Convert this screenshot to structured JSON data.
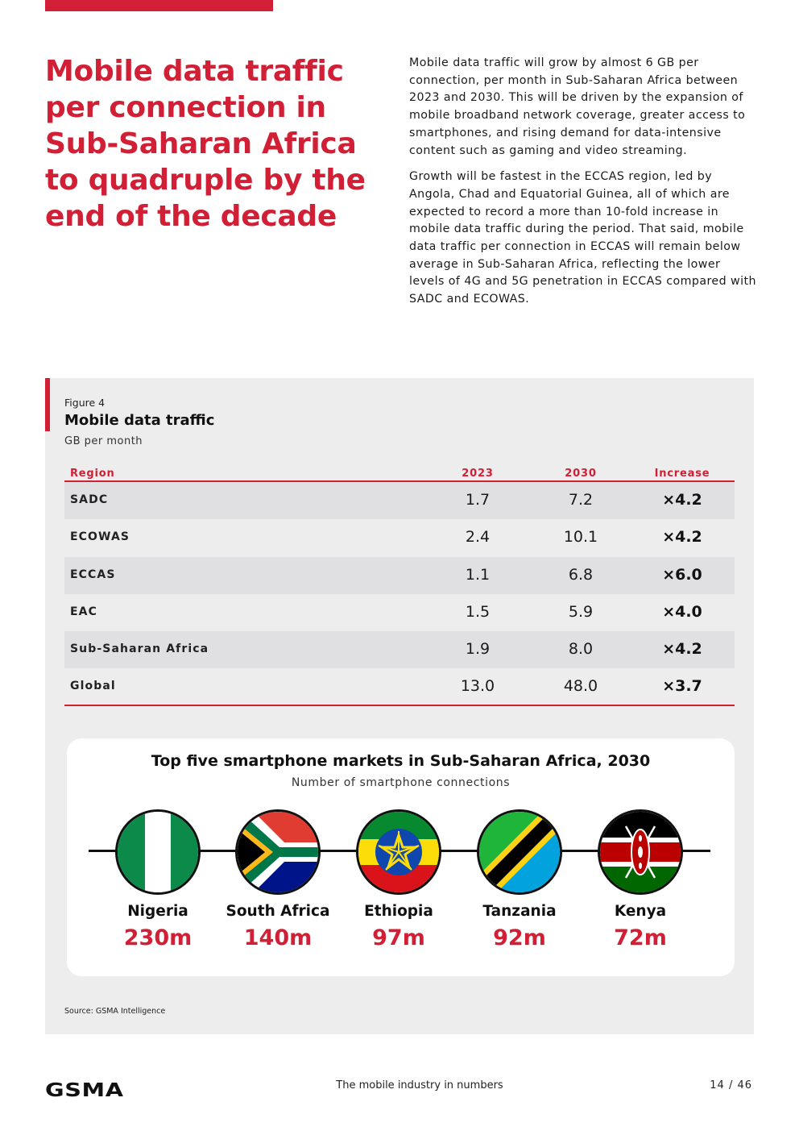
{
  "headline": "Mobile data traffic per connection in Sub-Saharan Africa to quadruple by the end of the decade",
  "intro": {
    "paragraph1": "Mobile data traffic will grow by almost 6 GB per connection, per month in Sub-Saharan Africa between 2023 and 2030. This will be driven by the expansion of mobile broadband network coverage, greater access to smartphones, and rising demand for data-intensive content such as gaming and video streaming.",
    "paragraph2": "Growth will be fastest in the ECCAS region, led by Angola, Chad and Equatorial Guinea, all of which are expected to record a more than 10-fold increase in mobile data traffic during the period. That said, mobile data traffic per connection in ECCAS will remain below average in Sub-Saharan Africa, reflecting the lower levels of 4G and 5G penetration in ECCAS compared with SADC and ECOWAS."
  },
  "figure": {
    "label": "Figure 4",
    "title": "Mobile data traffic",
    "subtitle": "GB per month",
    "columns": [
      "Region",
      "2023",
      "2030",
      "Increase"
    ],
    "rows": [
      {
        "region": "SADC",
        "y2023": "1.7",
        "y2030": "7.2",
        "increase": "×4.2"
      },
      {
        "region": "ECOWAS",
        "y2023": "2.4",
        "y2030": "10.1",
        "increase": "×4.2"
      },
      {
        "region": "ECCAS",
        "y2023": "1.1",
        "y2030": "6.8",
        "increase": "×6.0"
      },
      {
        "region": "EAC",
        "y2023": "1.5",
        "y2030": "5.9",
        "increase": "×4.0"
      },
      {
        "region": "Sub-Saharan Africa",
        "y2023": "1.9",
        "y2030": "8.0",
        "increase": "×4.2"
      },
      {
        "region": "Global",
        "y2023": "13.0",
        "y2030": "48.0",
        "increase": "×3.7"
      }
    ]
  },
  "markets": {
    "title": "Top five smartphone markets in Sub-Saharan Africa, 2030",
    "subtitle": "Number of smartphone connections",
    "items": [
      {
        "country": "Nigeria",
        "connections": "230m",
        "flag": "nigeria-flag-icon"
      },
      {
        "country": "South Africa",
        "connections": "140m",
        "flag": "south-africa-flag-icon"
      },
      {
        "country": "Ethiopia",
        "connections": "97m",
        "flag": "ethiopia-flag-icon"
      },
      {
        "country": "Tanzania",
        "connections": "92m",
        "flag": "tanzania-flag-icon"
      },
      {
        "country": "Kenya",
        "connections": "72m",
        "flag": "kenya-flag-icon"
      }
    ]
  },
  "source": "Source: GSMA Intelligence",
  "footer": {
    "logo": "GSMA",
    "title": "The mobile industry in numbers",
    "page": "14 / 46"
  },
  "colors": {
    "accent": "#d11f35",
    "panel": "#ededed",
    "row_shade": "#e0e0e2"
  }
}
